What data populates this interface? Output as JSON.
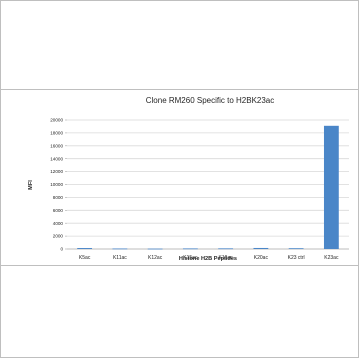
{
  "chart_data": {
    "type": "bar",
    "title": "Clone RM260 Specific to H2BK23ac",
    "xlabel": "Histone H2B Peptides",
    "ylabel": "MFI",
    "categories": [
      "K5ac",
      "K11ac",
      "K12ac",
      "K15ac",
      "K16ac",
      "K20ac",
      "K23 ctrl",
      "K23ac"
    ],
    "values": [
      150,
      80,
      60,
      90,
      100,
      160,
      120,
      19100
    ],
    "ylim": [
      0,
      20000
    ],
    "yticks": [
      0,
      2000,
      4000,
      6000,
      8000,
      10000,
      12000,
      14000,
      16000,
      18000,
      20000
    ],
    "grid": true,
    "legend": "none",
    "bar_color": "#4a86c8"
  }
}
